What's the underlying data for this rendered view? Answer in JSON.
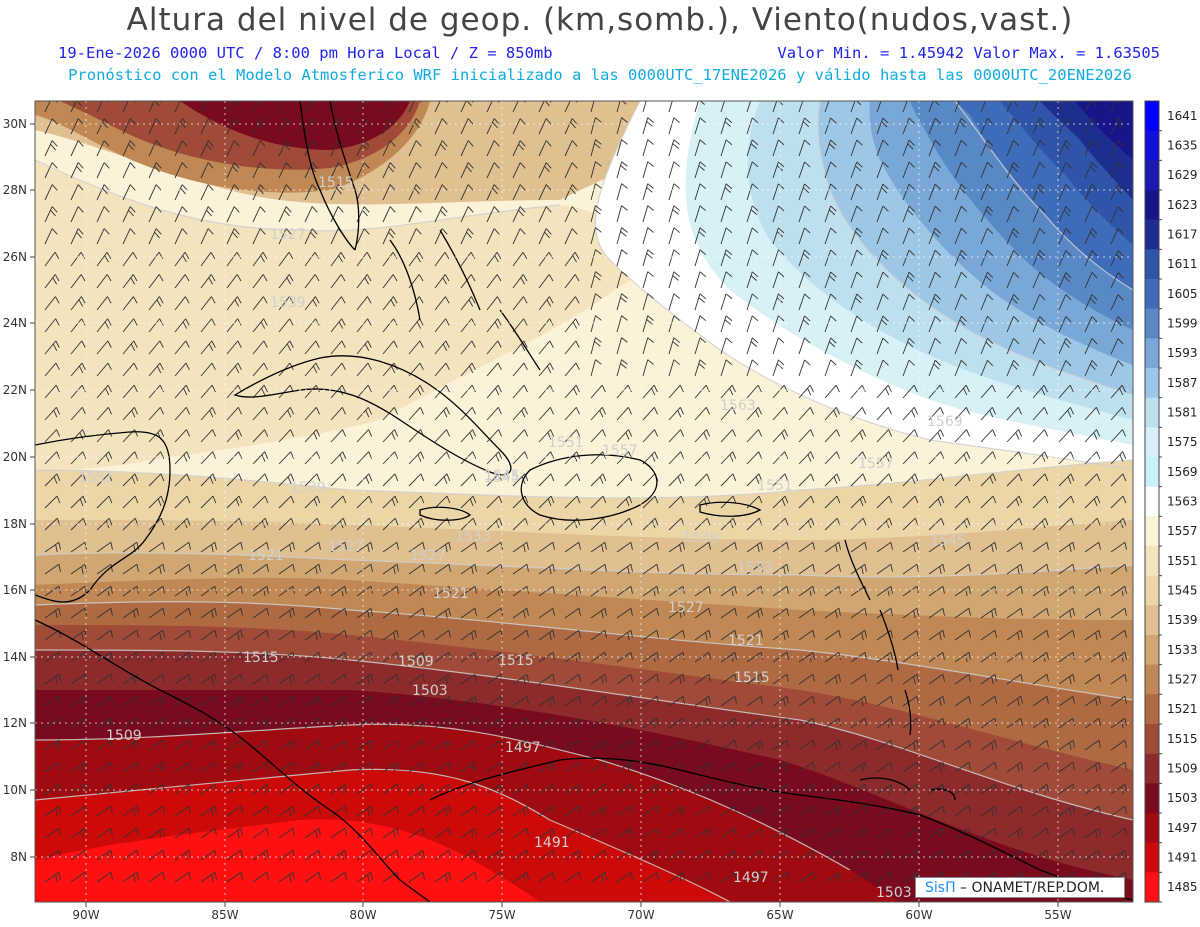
{
  "header": {
    "title": "Altura del nivel de geop. (km,somb.), Viento(nudos,vast.)",
    "line1_left": "19-Ene-2026  0000 UTC / 8:00 pm Hora Local / Z = 850mb",
    "line1_right": "Valor Min. = 1.45942  Valor Max. = 1.63505",
    "line2": "Pronóstico con el Modelo Atmosferico WRF inicializado a las 0000UTC_17ENE2026 y válido hasta las  0000UTC_20ENE2026"
  },
  "credit": {
    "sis": "SisΠ",
    "rest": " – ONAMET/REP.DOM."
  },
  "axes": {
    "lat_labels": [
      "30N",
      "28N",
      "26N",
      "24N",
      "22N",
      "20N",
      "18N",
      "16N",
      "14N",
      "12N",
      "10N",
      "8N"
    ],
    "lon_labels": [
      "90W",
      "85W",
      "80W",
      "75W",
      "70W",
      "65W",
      "60W",
      "55W"
    ]
  },
  "colorbar": {
    "levels": [
      "1641",
      "1635",
      "1629",
      "1623",
      "1617",
      "1611",
      "1605",
      "1599",
      "1593",
      "1587",
      "1581",
      "1575",
      "1569",
      "1563",
      "1557",
      "1551",
      "1545",
      "1539",
      "1533",
      "1527",
      "1521",
      "1515",
      "1509",
      "1503",
      "1497",
      "1491",
      "1485"
    ],
    "colors": [
      "#0000ff",
      "#1010dd",
      "#1a1ab0",
      "#16168a",
      "#1e2e8f",
      "#2f55a8",
      "#3f6cb8",
      "#5888c6",
      "#79a7d6",
      "#9cc7e6",
      "#bde0ef",
      "#d8f1f7",
      "#c7f2fb",
      "#ffffff",
      "#fbf2d8",
      "#f4e4bd",
      "#ecd6a8",
      "#e0c090",
      "#d0a673",
      "#c08854",
      "#b06a43",
      "#a04a38",
      "#8c2a2c",
      "#7a0a1e",
      "#a00a10",
      "#cc0a0a",
      "#ff1010"
    ]
  },
  "contour_labels": [
    "1515",
    "1527",
    "1539",
    "1551",
    "1539",
    "1545",
    "1551",
    "1563",
    "1569",
    "1557",
    "1551",
    "1545",
    "1533",
    "1527",
    "1521",
    "1527",
    "1533",
    "1539",
    "1527",
    "1521",
    "1515",
    "1509",
    "1503",
    "1515",
    "1509",
    "1497",
    "1491",
    "1497",
    "1503",
    "1515",
    "1521",
    "1545",
    "1557"
  ]
}
